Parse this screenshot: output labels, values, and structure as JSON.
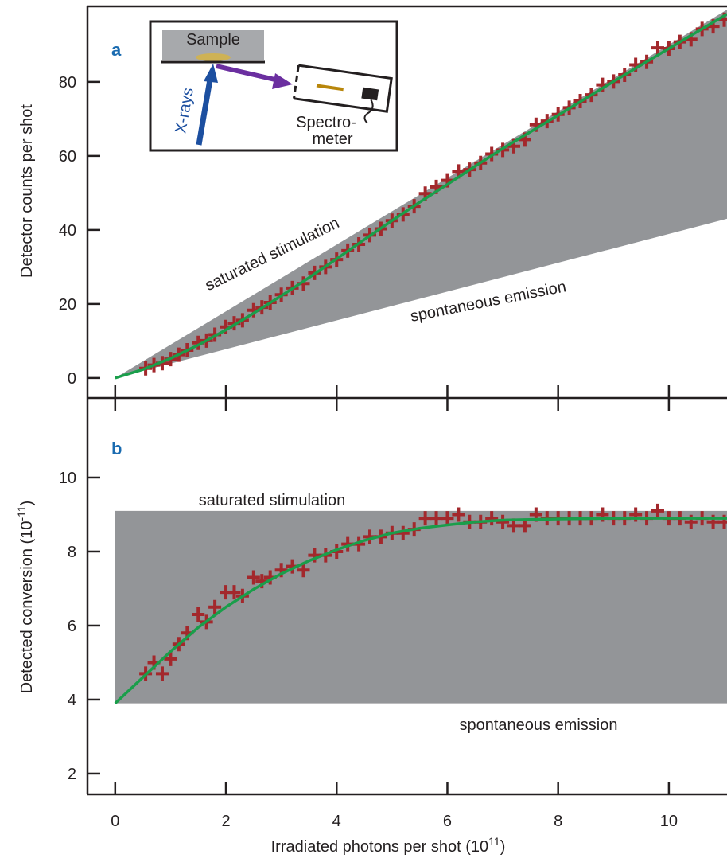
{
  "chart_data": [
    {
      "type": "scatter",
      "panel_label": "a",
      "ylabel": "Detector counts per shot",
      "xlim": [
        -0.5,
        11.05
      ],
      "ylim": [
        -5.4,
        100.4
      ],
      "yticks": [
        0,
        20,
        40,
        60,
        80
      ],
      "region": {
        "color": "#939598",
        "x": [
          0,
          11.05
        ],
        "upper": [
          0,
          99.5
        ],
        "lower": [
          0,
          43
        ],
        "upper_label": "saturated stimulation",
        "lower_label": "spontaneous emission"
      },
      "x": [
        0.55,
        0.7,
        0.85,
        1.0,
        1.15,
        1.3,
        1.5,
        1.65,
        1.8,
        2.0,
        2.15,
        2.3,
        2.5,
        2.65,
        2.8,
        3.0,
        3.2,
        3.4,
        3.6,
        3.8,
        4.0,
        4.2,
        4.4,
        4.6,
        4.8,
        5.0,
        5.2,
        5.4,
        5.6,
        5.8,
        6.0,
        6.2,
        6.4,
        6.6,
        6.8,
        7.0,
        7.2,
        7.4,
        7.6,
        7.8,
        8.0,
        8.2,
        8.4,
        8.6,
        8.8,
        9.0,
        9.2,
        9.4,
        9.6,
        9.8,
        10.0,
        10.2,
        10.4,
        10.6,
        10.8,
        11.0
      ],
      "series": [
        {
          "color": "#a3282c",
          "values": [
            2.6,
            3.5,
            4.0,
            5.1,
            6.3,
            7.5,
            9.5,
            10.1,
            11.7,
            13.8,
            14.8,
            15.6,
            18.3,
            19.1,
            20.4,
            22.5,
            24.3,
            25.5,
            28.4,
            30.0,
            32.0,
            34.4,
            36.1,
            38.6,
            40.3,
            42.5,
            44.2,
            46.4,
            49.8,
            51.6,
            53.4,
            55.8,
            56.3,
            58.1,
            60.5,
            61.6,
            62.6,
            64.4,
            68.4,
            69.4,
            71.2,
            73.0,
            74.8,
            76.5,
            79.2,
            80.1,
            81.9,
            84.6,
            85.4,
            89.2,
            89.0,
            90.8,
            91.5,
            94.3,
            95.0,
            96.8
          ]
        }
      ],
      "fit": {
        "color": "#1a9e4b",
        "x": [
          0,
          0.5,
          1,
          1.5,
          2,
          2.5,
          3,
          3.5,
          4,
          4.5,
          5,
          5.5,
          6,
          6.5,
          7,
          8,
          9,
          10,
          11.05
        ],
        "values": [
          0,
          2.3,
          5.3,
          8.9,
          13.0,
          17.5,
          22.2,
          27.1,
          32.2,
          37.4,
          42.5,
          47.5,
          52.3,
          57.2,
          62.0,
          71.0,
          80.1,
          89.0,
          98.3
        ]
      },
      "inset": {
        "sample": "Sample",
        "xrays": "X-rays",
        "spectro_1": "Spectro-",
        "spectro_2": "meter"
      }
    },
    {
      "type": "scatter",
      "panel_label": "b",
      "ylabel": "Detected conversion (10",
      "ylabel_sup": "-11",
      "ylabel_end": ")",
      "xlabel": "Irradiated photons per shot (10",
      "xlabel_sup": "11",
      "xlabel_end": ")",
      "xlim": [
        -0.5,
        11.05
      ],
      "xticks": [
        0,
        2,
        4,
        6,
        8,
        10
      ],
      "ylim": [
        1.44,
        12.15
      ],
      "yticks": [
        2,
        4,
        6,
        8,
        10
      ],
      "region": {
        "color": "#939598",
        "x": [
          0,
          11.05
        ],
        "upper": [
          9.1,
          9.1
        ],
        "lower": [
          3.9,
          3.9
        ],
        "upper_label": "saturated stimulation",
        "lower_label": "spontaneous emission"
      },
      "x": [
        0.55,
        0.7,
        0.85,
        1.0,
        1.15,
        1.3,
        1.5,
        1.65,
        1.8,
        2.0,
        2.15,
        2.3,
        2.5,
        2.65,
        2.8,
        3.0,
        3.2,
        3.4,
        3.6,
        3.8,
        4.0,
        4.2,
        4.4,
        4.6,
        4.8,
        5.0,
        5.2,
        5.4,
        5.6,
        5.8,
        6.0,
        6.2,
        6.4,
        6.6,
        6.8,
        7.0,
        7.2,
        7.4,
        7.6,
        7.8,
        8.0,
        8.2,
        8.4,
        8.6,
        8.8,
        9.0,
        9.2,
        9.4,
        9.6,
        9.8,
        10.0,
        10.2,
        10.4,
        10.6,
        10.8,
        11.0
      ],
      "series": [
        {
          "color": "#a3282c",
          "values": [
            4.7,
            5.0,
            4.7,
            5.1,
            5.5,
            5.8,
            6.3,
            6.1,
            6.5,
            6.9,
            6.9,
            6.8,
            7.3,
            7.2,
            7.3,
            7.5,
            7.6,
            7.5,
            7.9,
            7.9,
            8.0,
            8.2,
            8.2,
            8.4,
            8.4,
            8.5,
            8.5,
            8.6,
            8.9,
            8.9,
            8.9,
            9.0,
            8.8,
            8.8,
            8.9,
            8.8,
            8.7,
            8.7,
            9.0,
            8.9,
            8.9,
            8.9,
            8.9,
            8.9,
            9.0,
            8.9,
            8.9,
            9.0,
            8.9,
            9.1,
            8.9,
            8.9,
            8.8,
            8.9,
            8.8,
            8.8
          ]
        }
      ],
      "fit": {
        "color": "#1a9e4b",
        "x": [
          0,
          0.5,
          1,
          1.5,
          2,
          2.5,
          3,
          3.5,
          4,
          4.5,
          5,
          5.5,
          6,
          6.5,
          7,
          8,
          9,
          10,
          11.05
        ],
        "values": [
          3.9,
          4.6,
          5.3,
          5.95,
          6.5,
          6.98,
          7.4,
          7.75,
          8.05,
          8.3,
          8.5,
          8.63,
          8.72,
          8.8,
          8.85,
          8.88,
          8.9,
          8.9,
          8.9
        ]
      }
    }
  ]
}
